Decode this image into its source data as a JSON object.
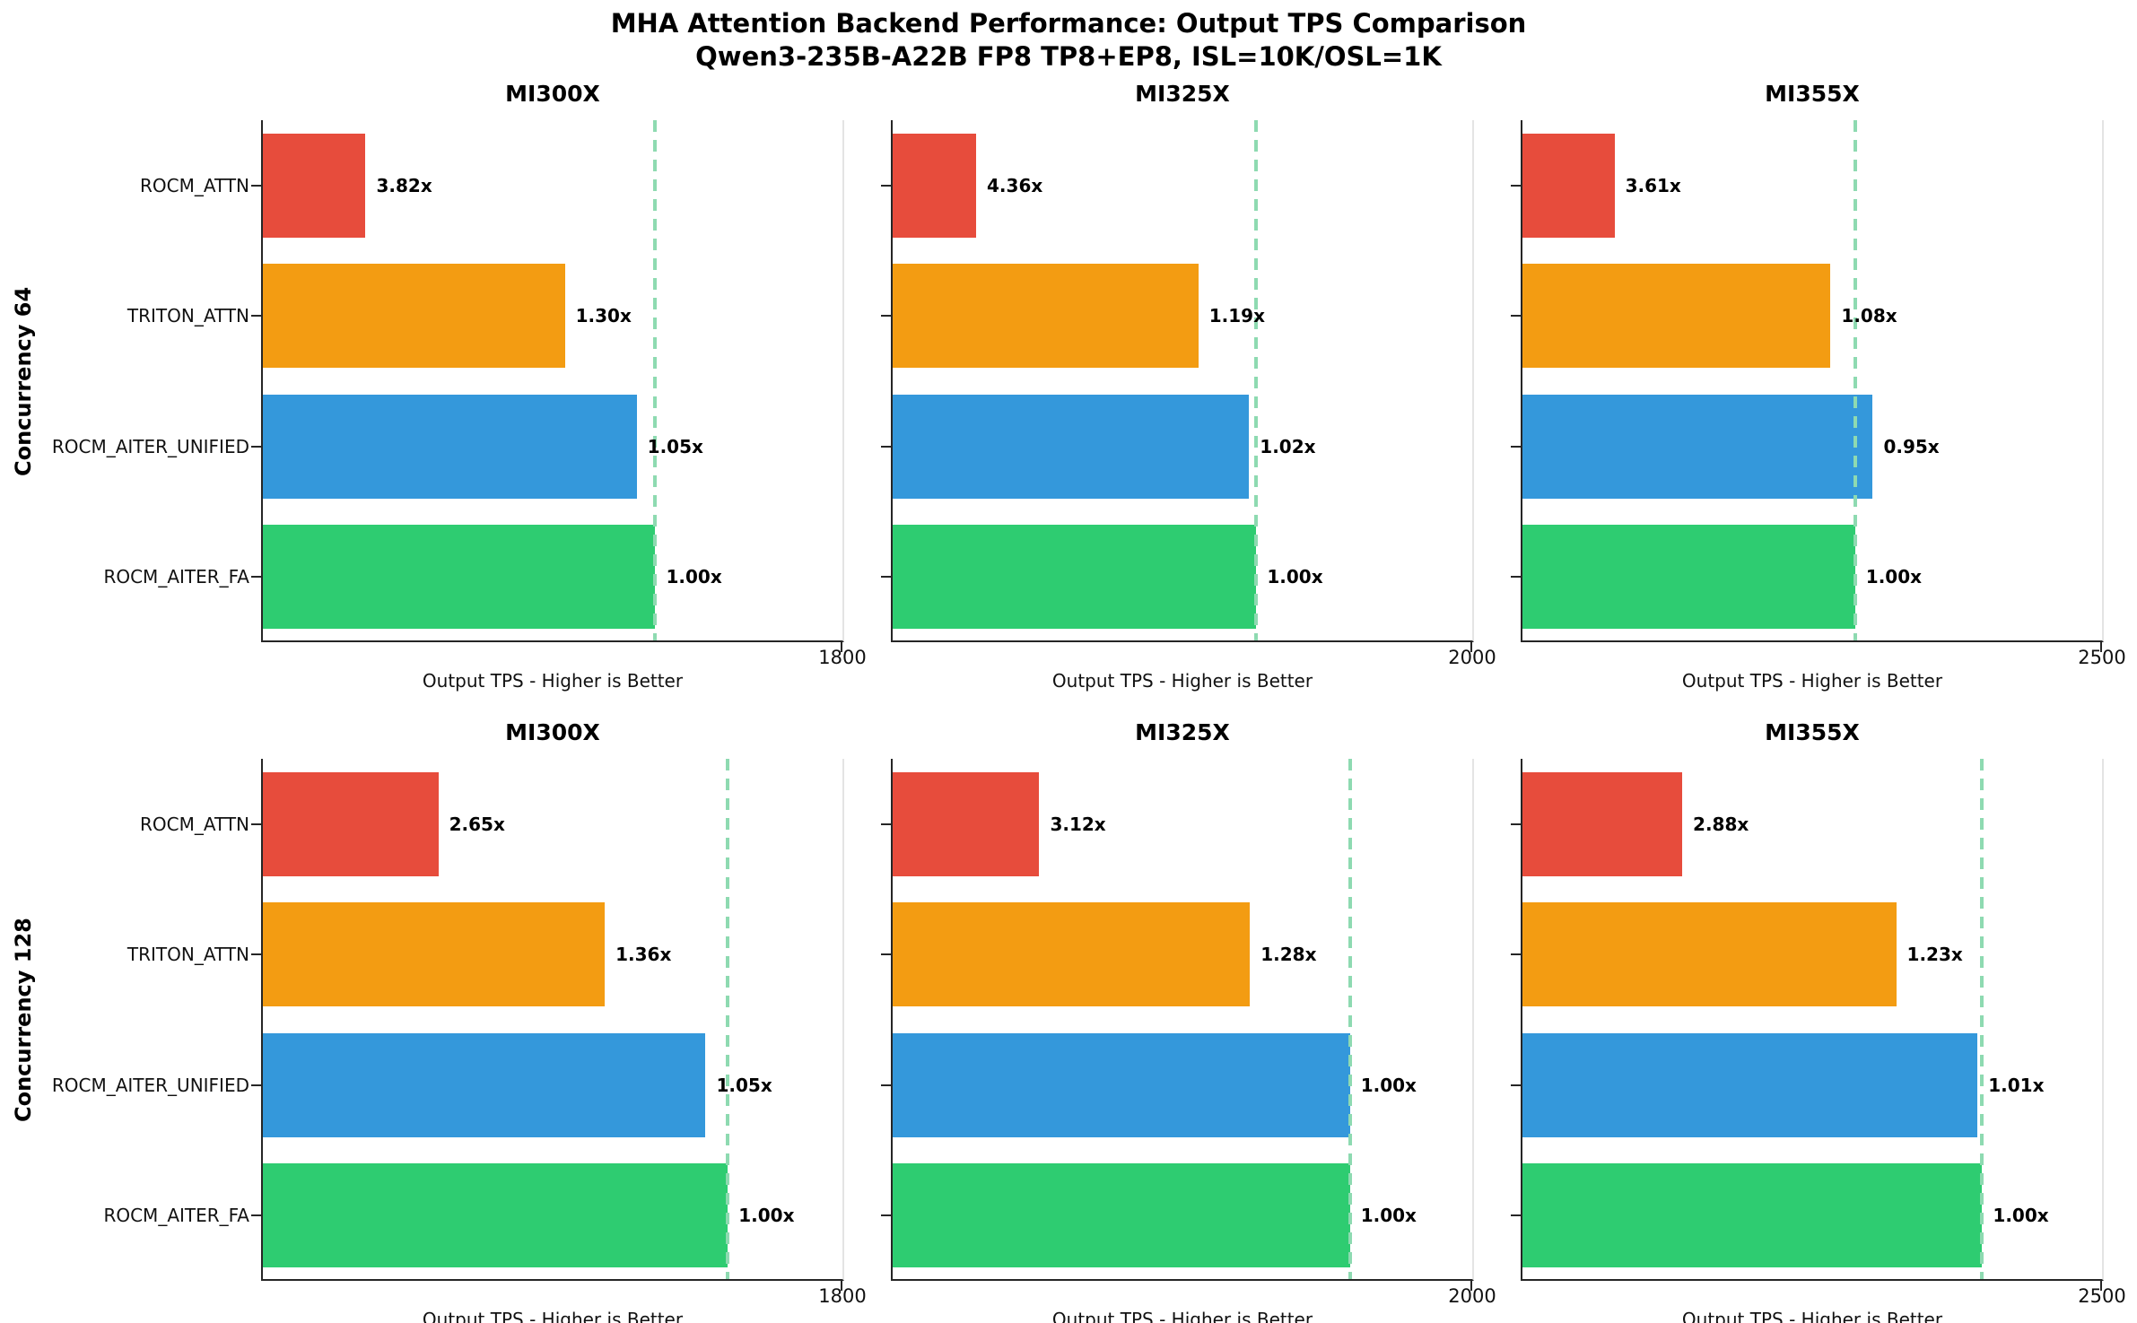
{
  "figure": {
    "title_line1": "MHA Attention Backend Performance: Output TPS Comparison",
    "title_line2": "Qwen3-235B-A22B FP8 TP8+EP8, ISL=10K/OSL=1K"
  },
  "chart_data": {
    "type": "bar",
    "orientation": "horizontal",
    "layout": "2 rows x 3 columns of subplots",
    "xlabel": "Output TPS - Higher is Better",
    "categories_top_to_bottom": [
      "ROCM_ATTN",
      "TRITON_ATTN",
      "ROCM_AITER_UNIFIED",
      "ROCM_AITER_FA"
    ],
    "bar_colors": {
      "ROCM_ATTN": "#e74c3c",
      "TRITON_ATTN": "#f39c12",
      "ROCM_AITER_UNIFIED": "#3498db",
      "ROCM_AITER_FA": "#2ecc71"
    },
    "baseline_line_color": "#8edab1",
    "baseline_note": "dashed vertical line marks the ROCM_AITER_FA (1.00x) throughput",
    "label_note": "bar labels = ROCM_AITER_FA TPS divided by backend TPS; TPS values estimated from bar lengths",
    "rows": [
      {
        "row_label": "Concurrency 64",
        "subplots": [
          {
            "title": "MI300X",
            "xlim": [
              0,
              1800
            ],
            "xtick_labels": [
              "1800"
            ],
            "baseline_tps_est": 1219,
            "bars": [
              {
                "backend": "ROCM_ATTN",
                "label": "3.82x",
                "tps_est": 319
              },
              {
                "backend": "TRITON_ATTN",
                "label": "1.30x",
                "tps_est": 938
              },
              {
                "backend": "ROCM_AITER_UNIFIED",
                "label": "1.05x",
                "tps_est": 1161
              },
              {
                "backend": "ROCM_AITER_FA",
                "label": "1.00x",
                "tps_est": 1219
              }
            ]
          },
          {
            "title": "MI325X",
            "xlim": [
              0,
              2000
            ],
            "xtick_labels": [
              "2000"
            ],
            "baseline_tps_est": 1255,
            "bars": [
              {
                "backend": "ROCM_ATTN",
                "label": "4.36x",
                "tps_est": 288
              },
              {
                "backend": "TRITON_ATTN",
                "label": "1.19x",
                "tps_est": 1055
              },
              {
                "backend": "ROCM_AITER_UNIFIED",
                "label": "1.02x",
                "tps_est": 1230
              },
              {
                "backend": "ROCM_AITER_FA",
                "label": "1.00x",
                "tps_est": 1255
              }
            ]
          },
          {
            "title": "MI355X",
            "xlim": [
              0,
              2500
            ],
            "xtick_labels": [
              "2500"
            ],
            "baseline_tps_est": 1435,
            "bars": [
              {
                "backend": "ROCM_ATTN",
                "label": "3.61x",
                "tps_est": 397
              },
              {
                "backend": "TRITON_ATTN",
                "label": "1.08x",
                "tps_est": 1329
              },
              {
                "backend": "ROCM_AITER_UNIFIED",
                "label": "0.95x",
                "tps_est": 1511
              },
              {
                "backend": "ROCM_AITER_FA",
                "label": "1.00x",
                "tps_est": 1435
              }
            ]
          }
        ]
      },
      {
        "row_label": "Concurrency 128",
        "subplots": [
          {
            "title": "MI300X",
            "xlim": [
              0,
              1800
            ],
            "xtick_labels": [
              "1800"
            ],
            "baseline_tps_est": 1444,
            "bars": [
              {
                "backend": "ROCM_ATTN",
                "label": "2.65x",
                "tps_est": 545
              },
              {
                "backend": "TRITON_ATTN",
                "label": "1.36x",
                "tps_est": 1062
              },
              {
                "backend": "ROCM_AITER_UNIFIED",
                "label": "1.05x",
                "tps_est": 1375
              },
              {
                "backend": "ROCM_AITER_FA",
                "label": "1.00x",
                "tps_est": 1444
              }
            ]
          },
          {
            "title": "MI325X",
            "xlim": [
              0,
              2000
            ],
            "xtick_labels": [
              "2000"
            ],
            "baseline_tps_est": 1578,
            "bars": [
              {
                "backend": "ROCM_ATTN",
                "label": "3.12x",
                "tps_est": 506
              },
              {
                "backend": "TRITON_ATTN",
                "label": "1.28x",
                "tps_est": 1233
              },
              {
                "backend": "ROCM_AITER_UNIFIED",
                "label": "1.00x",
                "tps_est": 1578
              },
              {
                "backend": "ROCM_AITER_FA",
                "label": "1.00x",
                "tps_est": 1578
              }
            ]
          },
          {
            "title": "MI355X",
            "xlim": [
              0,
              2500
            ],
            "xtick_labels": [
              "2500"
            ],
            "baseline_tps_est": 1983,
            "bars": [
              {
                "backend": "ROCM_ATTN",
                "label": "2.88x",
                "tps_est": 689
              },
              {
                "backend": "TRITON_ATTN",
                "label": "1.23x",
                "tps_est": 1612
              },
              {
                "backend": "ROCM_AITER_UNIFIED",
                "label": "1.01x",
                "tps_est": 1963
              },
              {
                "backend": "ROCM_AITER_FA",
                "label": "1.00x",
                "tps_est": 1983
              }
            ]
          }
        ]
      }
    ]
  }
}
